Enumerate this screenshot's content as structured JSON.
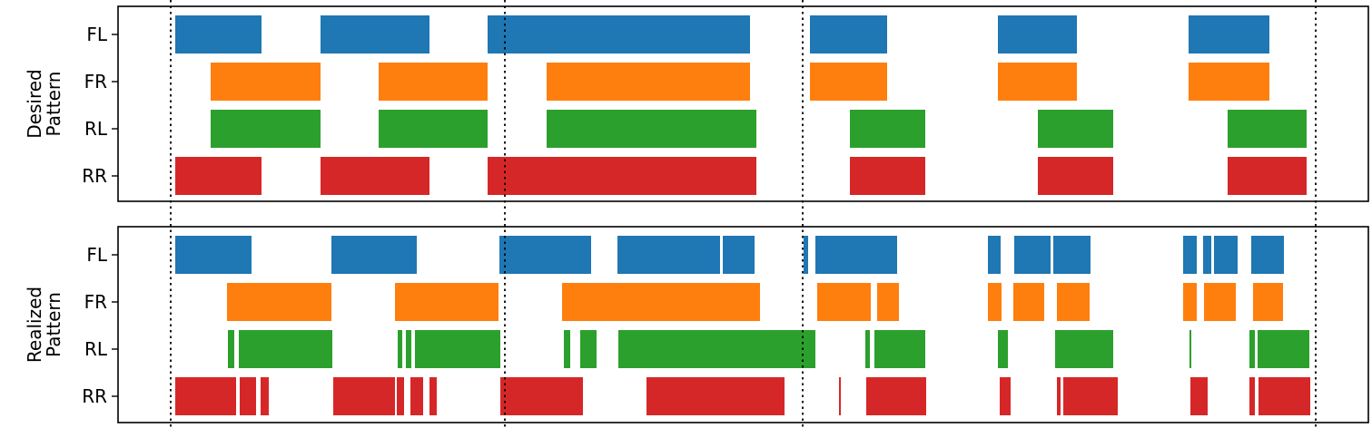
{
  "chart_data": {
    "type": "gantt",
    "legend": "none",
    "grid": false,
    "colors": {
      "FL": "#1f77b4",
      "FR": "#ff7f0e",
      "RL": "#2ca02c",
      "RR": "#d62728"
    },
    "vlines": [
      188,
      556,
      884,
      1449
    ],
    "panels": [
      {
        "ylabel": [
          "Desired",
          "Pattern"
        ],
        "categories": [
          "FL",
          "FR",
          "RL",
          "RR"
        ],
        "xlim": [
          130,
          1507
        ],
        "series": [
          {
            "name": "FL",
            "intervals": [
              [
                193,
                288
              ],
              [
                353,
                473
              ],
              [
                537,
                826
              ],
              [
                892,
                977
              ],
              [
                1099,
                1186
              ],
              [
                1309,
                1398
              ]
            ]
          },
          {
            "name": "FR",
            "intervals": [
              [
                232,
                353
              ],
              [
                417,
                537
              ],
              [
                602,
                826
              ],
              [
                892,
                977
              ],
              [
                1099,
                1186
              ],
              [
                1309,
                1398
              ]
            ]
          },
          {
            "name": "RL",
            "intervals": [
              [
                232,
                353
              ],
              [
                417,
                537
              ],
              [
                602,
                833
              ],
              [
                936,
                1019
              ],
              [
                1143,
                1226
              ],
              [
                1352,
                1439
              ]
            ]
          },
          {
            "name": "RR",
            "intervals": [
              [
                193,
                288
              ],
              [
                353,
                473
              ],
              [
                537,
                833
              ],
              [
                936,
                1019
              ],
              [
                1143,
                1226
              ],
              [
                1352,
                1439
              ]
            ]
          }
        ]
      },
      {
        "ylabel": [
          "Realized",
          "Pattern"
        ],
        "categories": [
          "FL",
          "FR",
          "RL",
          "RR"
        ],
        "xlim": [
          130,
          1507
        ],
        "series": [
          {
            "name": "FL",
            "intervals": [
              [
                193,
                277
              ],
              [
                365,
                459
              ],
              [
                550,
                651
              ],
              [
                680,
                793
              ],
              [
                796,
                831
              ],
              [
                885,
                890
              ],
              [
                898,
                988
              ],
              [
                1088,
                1102
              ],
              [
                1117,
                1157
              ],
              [
                1160,
                1201
              ],
              [
                1303,
                1318
              ],
              [
                1325,
                1334
              ],
              [
                1337,
                1363
              ],
              [
                1378,
                1414
              ]
            ]
          },
          {
            "name": "FR",
            "intervals": [
              [
                250,
                365
              ],
              [
                435,
                549
              ],
              [
                619,
                837
              ],
              [
                900,
                959
              ],
              [
                966,
                990
              ],
              [
                1088,
                1103
              ],
              [
                1116,
                1150
              ],
              [
                1164,
                1200
              ],
              [
                1303,
                1318
              ],
              [
                1326,
                1361
              ],
              [
                1380,
                1413
              ]
            ]
          },
          {
            "name": "RL",
            "intervals": [
              [
                251,
                258
              ],
              [
                263,
                366
              ],
              [
                438,
                443
              ],
              [
                447,
                453
              ],
              [
                457,
                551
              ],
              [
                621,
                628
              ],
              [
                639,
                657
              ],
              [
                681,
                898
              ],
              [
                953,
                958
              ],
              [
                963,
                1019
              ],
              [
                1099,
                1110
              ],
              [
                1162,
                1226
              ],
              [
                1310,
                1312
              ],
              [
                1376,
                1382
              ],
              [
                1385,
                1442
              ]
            ]
          },
          {
            "name": "RR",
            "intervals": [
              [
                193,
                260
              ],
              [
                264,
                282
              ],
              [
                287,
                296
              ],
              [
                367,
                435
              ],
              [
                437,
                445
              ],
              [
                452,
                466
              ],
              [
                473,
                481
              ],
              [
                551,
                642
              ],
              [
                712,
                864
              ],
              [
                924,
                926
              ],
              [
                954,
                1020
              ],
              [
                1101,
                1113
              ],
              [
                1164,
                1168
              ],
              [
                1171,
                1231
              ],
              [
                1311,
                1330
              ],
              [
                1376,
                1382
              ],
              [
                1386,
                1443
              ]
            ]
          }
        ]
      }
    ]
  }
}
